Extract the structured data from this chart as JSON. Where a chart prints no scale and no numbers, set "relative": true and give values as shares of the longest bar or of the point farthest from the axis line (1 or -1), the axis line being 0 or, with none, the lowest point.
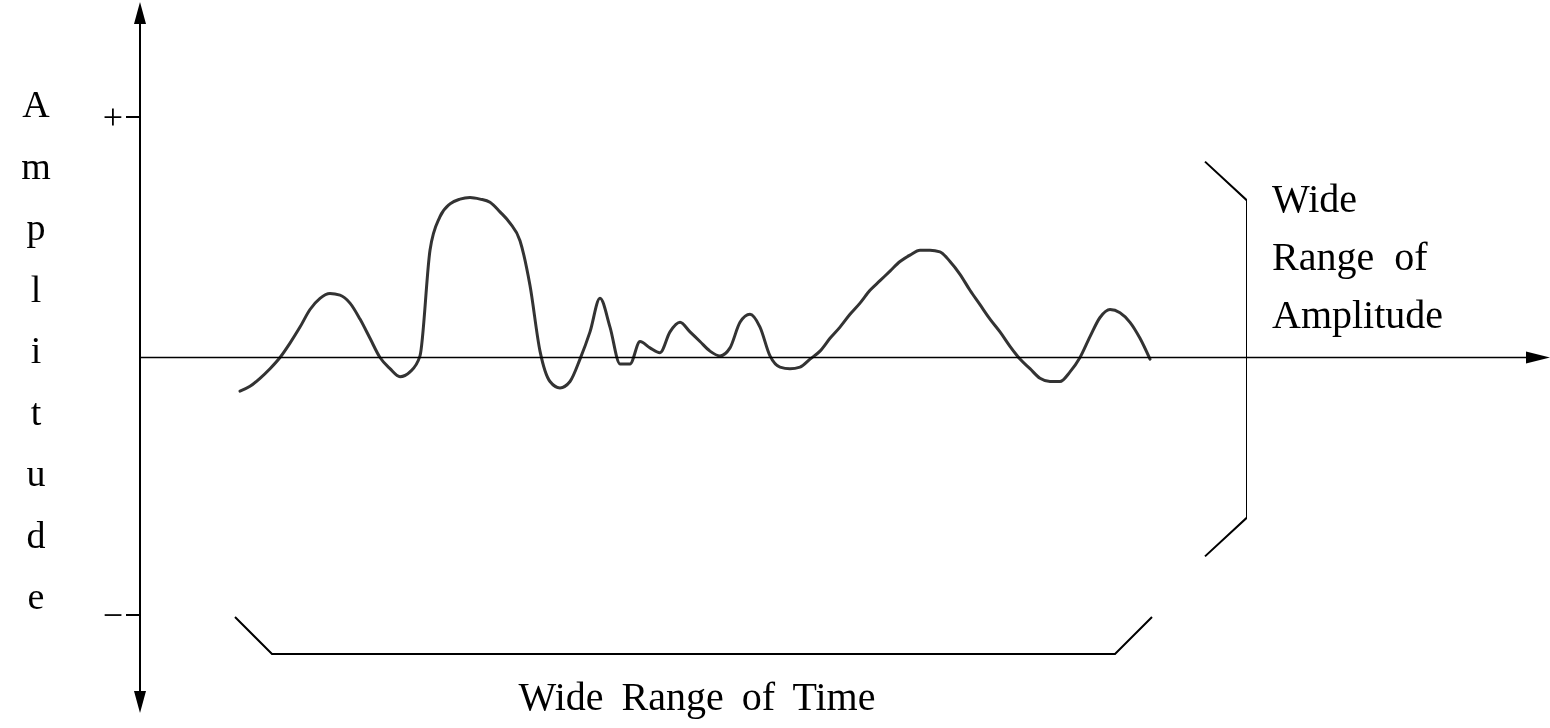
{
  "chart_data": {
    "type": "line",
    "relative": true,
    "ylabel": "Amplitude",
    "annotations": [
      "+",
      "−",
      "Wide Range of Amplitude",
      "Wide Range of Time"
    ],
    "categories": [
      null,
      null,
      null,
      null,
      null,
      null,
      null,
      null,
      null,
      null,
      null,
      null,
      null,
      null,
      null,
      null,
      null,
      null,
      null,
      null,
      null,
      null,
      null,
      null,
      null,
      null,
      null,
      null,
      null,
      null,
      null,
      null,
      null,
      null,
      null,
      null,
      null,
      null,
      null,
      null,
      null,
      null,
      null,
      null,
      null,
      null,
      null,
      null,
      null,
      null,
      null,
      null,
      null,
      null,
      null,
      null,
      null,
      null,
      null,
      null,
      null,
      null,
      null,
      null,
      null,
      null,
      null,
      null,
      null,
      null,
      null,
      null,
      null,
      null,
      null,
      null,
      null,
      null,
      null,
      null,
      null,
      null,
      null,
      null,
      null,
      null,
      null,
      null,
      null,
      null,
      null,
      null,
      null,
      null,
      null,
      null,
      null,
      null,
      null,
      null,
      null,
      null,
      null,
      null,
      null,
      null,
      null,
      null,
      null,
      null,
      null,
      null,
      null,
      null,
      null,
      null,
      null,
      null,
      null,
      null,
      null,
      null,
      null,
      null,
      null,
      null,
      null,
      null,
      null,
      null,
      null,
      null,
      null,
      null,
      null,
      null,
      null,
      null,
      null,
      null,
      null
    ],
    "series": [
      {
        "color": "#333333",
        "values": [
          null,
          null,
          null,
          null,
          null,
          null,
          null,
          null,
          null,
          null,
          -0.21,
          -0.18,
          -0.13,
          -0.07,
          0,
          0.09,
          0.19,
          0.3,
          0.37,
          0.4,
          0.39,
          0.34,
          0.24,
          0.12,
          0,
          -0.07,
          -0.12,
          -0.09,
          0.01,
          0.67,
          0.88,
          0.96,
          0.99,
          1,
          0.99,
          0.97,
          0.91,
          0.84,
          0.73,
          0.45,
          0.04,
          -0.15,
          -0.19,
          -0.15,
          -0.01,
          0.16,
          0.37,
          0.19,
          -0.04,
          -0.04,
          0.1,
          0.06,
          0.03,
          0.16,
          0.22,
          0.16,
          0.1,
          0.04,
          0.01,
          0.06,
          0.22,
          0.27,
          0.19,
          0.01,
          -0.06,
          -0.07,
          -0.06,
          -0.01,
          0.04,
          0.12,
          0.19,
          0.27,
          0.34,
          0.42,
          0.48,
          0.54,
          0.6,
          0.64,
          0.67,
          0.67,
          0.66,
          0.6,
          0.52,
          0.42,
          0.33,
          0.24,
          0.16,
          0.07,
          -0.01,
          -0.07,
          -0.13,
          -0.15,
          -0.15,
          -0.09,
          0,
          0.13,
          0.25,
          0.3,
          0.28,
          0.22,
          0.12,
          -0.01,
          null,
          null,
          null,
          null,
          null,
          null,
          null,
          null,
          null,
          null,
          null,
          null,
          null,
          null,
          null,
          null,
          null,
          null,
          null,
          null,
          null,
          null,
          null,
          null,
          null,
          null,
          null,
          null,
          null,
          null,
          null,
          null,
          null,
          null,
          null,
          null,
          null,
          null,
          null
        ]
      }
    ]
  }
}
